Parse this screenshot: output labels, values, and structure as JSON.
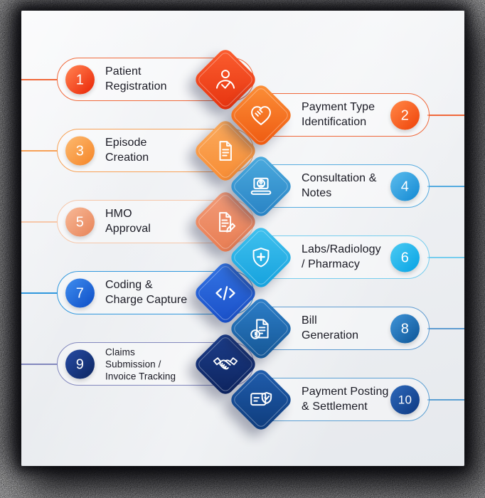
{
  "palette": {
    "card_background_top": "#f6f7f9",
    "card_background_bottom": "#e6e9ed",
    "title_color": "#1a1a24",
    "number_color": "#ffffff",
    "frame_shadow_color": "#0a0a0e"
  },
  "steps": [
    {
      "number": "1",
      "title_lines": [
        "Patient",
        "Registration"
      ],
      "side": "left",
      "icon": "person-check-icon",
      "colors": {
        "stroke": "#f0683a",
        "circle": [
          "#ff7a4a",
          "#ec2f0e"
        ],
        "diamond": [
          "#fa5c2e",
          "#e73510"
        ]
      }
    },
    {
      "number": "2",
      "title_lines": [
        "Payment Type",
        "Identification"
      ],
      "side": "right",
      "icon": "hands-heart-icon",
      "colors": {
        "stroke": "#f0683a",
        "circle": [
          "#ff8040",
          "#f04a10"
        ],
        "diamond": [
          "#fb8d36",
          "#ef5c12"
        ]
      }
    },
    {
      "number": "3",
      "title_lines": [
        "Episode",
        "Creation"
      ],
      "side": "left",
      "icon": "document-icon",
      "colors": {
        "stroke": "#f7a156",
        "circle": [
          "#fcb468",
          "#f68b2f"
        ],
        "diamond": [
          "#fbaa5c",
          "#f78d35"
        ]
      }
    },
    {
      "number": "4",
      "title_lines": [
        "Consultation &",
        "Notes"
      ],
      "side": "right",
      "icon": "laptop-user-icon",
      "colors": {
        "stroke": "#55abdf",
        "circle": [
          "#54b6ea",
          "#1b8fd6"
        ],
        "diamond": [
          "#4aa9dd",
          "#2a84c5"
        ]
      }
    },
    {
      "number": "5",
      "title_lines": [
        "HMO",
        "Approval"
      ],
      "side": "left",
      "icon": "document-edit-icon",
      "colors": {
        "stroke": "#f6c7a9",
        "circle": [
          "#f6b390",
          "#e9895f"
        ],
        "diamond": [
          "#f29b78",
          "#e87e54"
        ]
      }
    },
    {
      "number": "6",
      "title_lines": [
        "Labs/Radiology",
        "/ Pharmacy"
      ],
      "side": "right",
      "icon": "shield-cross-icon",
      "colors": {
        "stroke": "#76cdee",
        "circle": [
          "#43c6f1",
          "#0ea7e6"
        ],
        "diamond": [
          "#3fc0ee",
          "#17a3de"
        ]
      }
    },
    {
      "number": "7",
      "title_lines": [
        "Coding &",
        "Charge Capture"
      ],
      "side": "left",
      "icon": "code-icon",
      "colors": {
        "stroke": "#2f97dd",
        "circle": [
          "#3a86ea",
          "#1355cb"
        ],
        "diamond": [
          "#3373e3",
          "#1b51c9"
        ]
      }
    },
    {
      "number": "8",
      "title_lines": [
        "Bill",
        "Generation"
      ],
      "side": "right",
      "icon": "bill-alert-icon",
      "colors": {
        "stroke": "#5e9bd0",
        "circle": [
          "#398dd1",
          "#135c9e"
        ],
        "diamond": [
          "#2c7dc7",
          "#165897"
        ]
      }
    },
    {
      "number": "9",
      "title_lines": [
        "Claims",
        "Submission /",
        "Invoice Tracking"
      ],
      "side": "left",
      "icon": "handshake-icon",
      "colors": {
        "stroke": "#8287bd",
        "circle": [
          "#24479c",
          "#0f2a68"
        ],
        "diamond": [
          "#1c3d89",
          "#0e2560"
        ]
      }
    },
    {
      "number": "10",
      "title_lines": [
        "Payment Posting",
        "& Settlement"
      ],
      "side": "right",
      "icon": "payment-shield-icon",
      "colors": {
        "stroke": "#5b9fd2",
        "circle": [
          "#2a63b4",
          "#113e88"
        ],
        "diamond": [
          "#1f5cab",
          "#0f3d7e"
        ]
      }
    }
  ]
}
